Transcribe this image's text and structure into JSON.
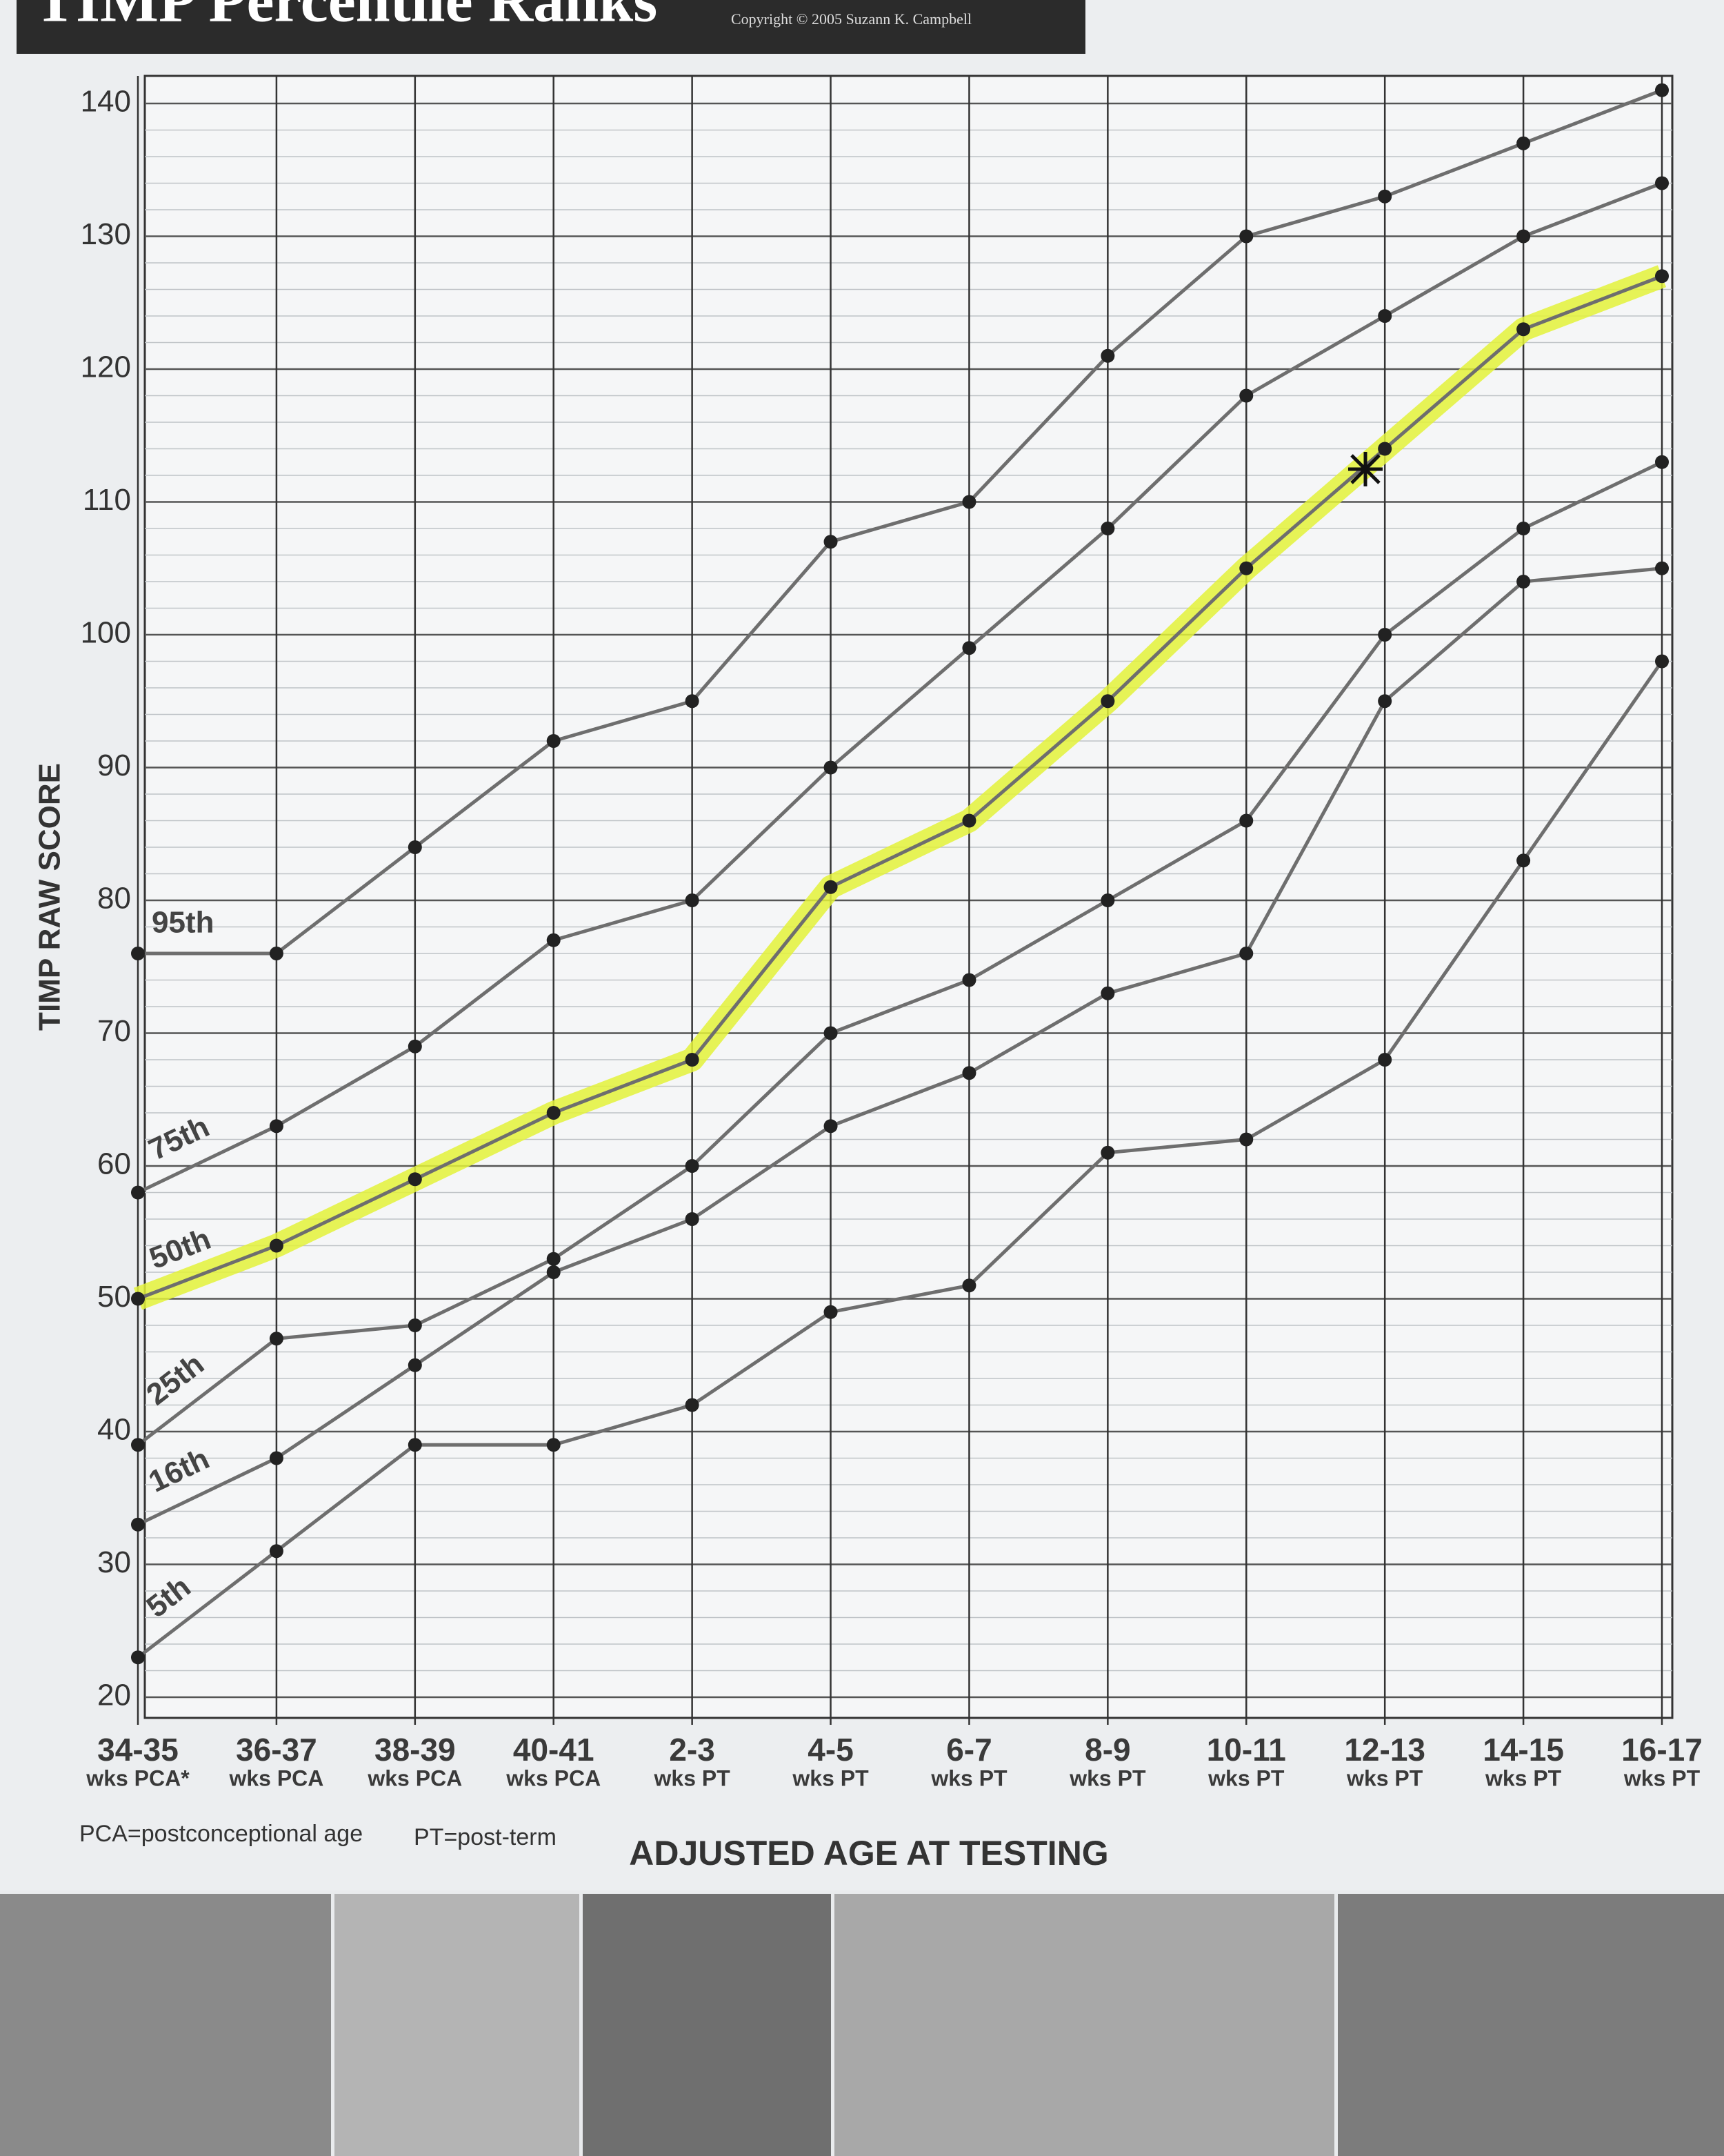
{
  "chart_data": {
    "type": "line",
    "title": "TIMP Percentile Ranks",
    "copyright": "Copyright © 2005 Suzann K. Campbell",
    "y_label": "TIMP RAW SCORE",
    "x_label": "ADJUSTED AGE AT TESTING",
    "footnotes": [
      "PCA=postconceptional age",
      "PT=post-term"
    ],
    "categories": [
      "34-35",
      "36-37",
      "38-39",
      "40-41",
      "2-3",
      "4-5",
      "6-7",
      "8-9",
      "10-11",
      "12-13",
      "14-15",
      "16-17"
    ],
    "category_sublabels": [
      "wks PCA*",
      "wks PCA",
      "wks PCA",
      "wks PCA",
      "wks PT",
      "wks PT",
      "wks PT",
      "wks PT",
      "wks PT",
      "wks PT",
      "wks PT",
      "wks PT"
    ],
    "ylim": [
      20,
      140
    ],
    "yticks": [
      20,
      30,
      40,
      50,
      60,
      70,
      80,
      90,
      100,
      110,
      120,
      130,
      140
    ],
    "minor_grid_step": 2,
    "grid": true,
    "line_color": "#6e6e6e",
    "marker_color": "#222222",
    "series": [
      {
        "name": "95th",
        "values": [
          76,
          76,
          84,
          92,
          95,
          107,
          110,
          121,
          130,
          133,
          137,
          141
        ]
      },
      {
        "name": "75th",
        "values": [
          58,
          63,
          69,
          77,
          80,
          90,
          99,
          108,
          118,
          124,
          130,
          134
        ]
      },
      {
        "name": "50th",
        "highlight": "#e3f23a",
        "values": [
          50,
          54,
          59,
          64,
          68,
          81,
          86,
          95,
          105,
          114,
          123,
          127
        ]
      },
      {
        "name": "25th",
        "values": [
          39,
          47,
          48,
          53,
          60,
          70,
          74,
          80,
          86,
          100,
          108,
          113
        ]
      },
      {
        "name": "16th",
        "values": [
          33,
          38,
          45,
          52,
          56,
          63,
          67,
          73,
          76,
          95,
          104,
          105
        ]
      },
      {
        "name": "5th",
        "values": [
          23,
          31,
          39,
          39,
          42,
          49,
          51,
          61,
          62,
          68,
          83,
          98
        ]
      }
    ]
  }
}
